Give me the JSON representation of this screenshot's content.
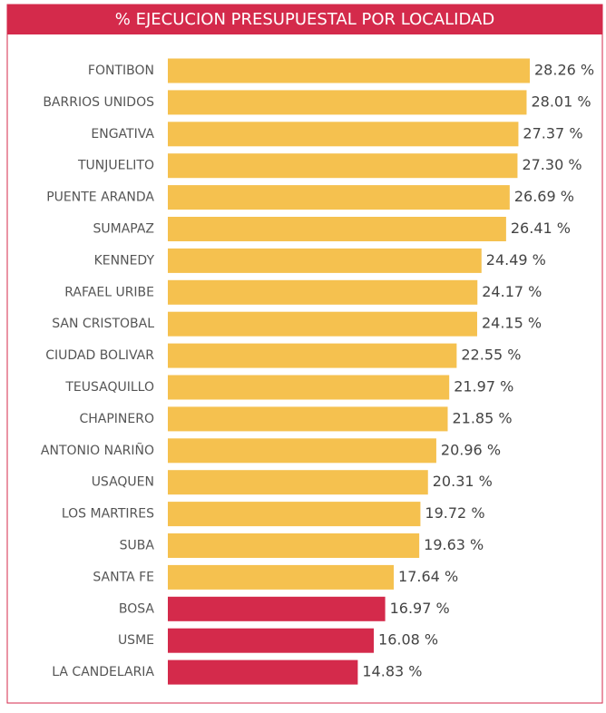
{
  "chart_data": {
    "type": "bar",
    "orientation": "horizontal",
    "title": "% EJECUCION PRESUPUESTAL POR LOCALIDAD",
    "categories": [
      "FONTIBON",
      "BARRIOS UNIDOS",
      "ENGATIVA",
      "TUNJUELITO",
      "PUENTE ARANDA",
      "SUMAPAZ",
      "KENNEDY",
      "RAFAEL URIBE",
      "SAN CRISTOBAL",
      "CIUDAD BOLIVAR",
      "TEUSAQUILLO",
      "CHAPINERO",
      "ANTONIO NARIÑO",
      "USAQUEN",
      "LOS MARTIRES",
      "SUBA",
      "SANTA FE",
      "BOSA",
      "USME",
      "LA CANDELARIA"
    ],
    "values": [
      28.26,
      28.01,
      27.37,
      27.3,
      26.69,
      26.41,
      24.49,
      24.17,
      24.15,
      22.55,
      21.97,
      21.85,
      20.96,
      20.31,
      19.72,
      19.63,
      17.64,
      16.97,
      16.08,
      14.83
    ],
    "value_labels": [
      "28.26 %",
      "28.01 %",
      "27.37 %",
      "27.30 %",
      "26.69 %",
      "26.41 %",
      "24.49 %",
      "24.17 %",
      "24.15 %",
      "22.55 %",
      "21.97 %",
      "21.85 %",
      "20.96 %",
      "20.31 %",
      "19.72 %",
      "19.63 %",
      "17.64 %",
      "16.97 %",
      "16.08 %",
      "14.83 %"
    ],
    "colors": [
      "#f5c14f",
      "#f5c14f",
      "#f5c14f",
      "#f5c14f",
      "#f5c14f",
      "#f5c14f",
      "#f5c14f",
      "#f5c14f",
      "#f5c14f",
      "#f5c14f",
      "#f5c14f",
      "#f5c14f",
      "#f5c14f",
      "#f5c14f",
      "#f5c14f",
      "#f5c14f",
      "#f5c14f",
      "#d42a4b",
      "#d42a4b",
      "#d42a4b"
    ]
  }
}
